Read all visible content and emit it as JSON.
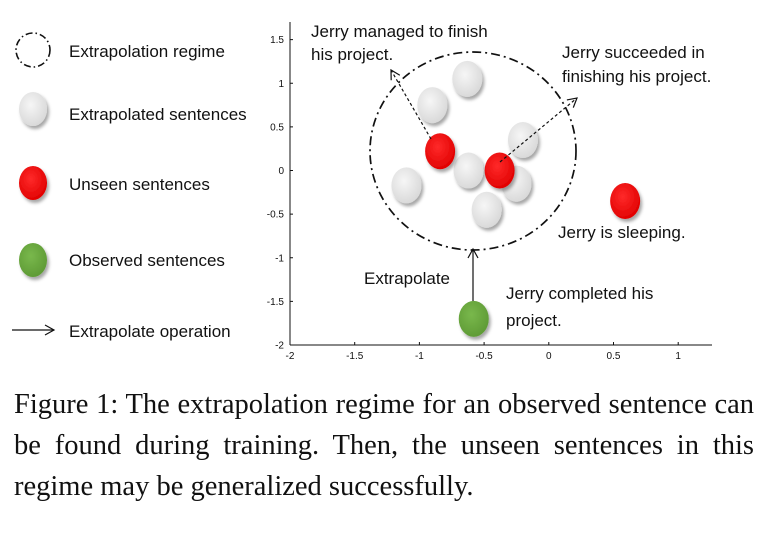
{
  "legend": {
    "regime": "Extrapolation regime",
    "extrapolated": "Extrapolated sentences",
    "unseen": "Unseen sentences",
    "observed": "Observed sentences",
    "operation": "Extrapolate operation"
  },
  "annotations": {
    "managed_l1": "Jerry managed to finish",
    "managed_l2": "his project.",
    "succeeded_l1": "Jerry succeeded in",
    "succeeded_l2": "finishing his project.",
    "sleeping": "Jerry is sleeping.",
    "completed_l1": "Jerry completed his",
    "completed_l2": "project.",
    "extrapolate": "Extrapolate"
  },
  "axes": {
    "x_ticks": [
      "-2",
      "-1.5",
      "-1",
      "-0.5",
      "0",
      "0.5",
      "1"
    ],
    "y_ticks": [
      "1.5",
      "1",
      "0.5",
      "0",
      "-0.5",
      "-1",
      "-1.5",
      "-2"
    ],
    "xlim": [
      -2,
      1.3
    ],
    "ylim": [
      -2,
      1.7
    ]
  },
  "colors": {
    "extrapolated": "#e2e2e2",
    "unseen": "#f20d0d",
    "observed": "#6aaa3f"
  },
  "points": {
    "extrapolated": [
      {
        "x": -0.63,
        "y": 1.05
      },
      {
        "x": -0.9,
        "y": 0.75
      },
      {
        "x": -0.2,
        "y": 0.35
      },
      {
        "x": -0.62,
        "y": 0.0
      },
      {
        "x": -0.25,
        "y": -0.15
      },
      {
        "x": -1.1,
        "y": -0.17
      },
      {
        "x": -0.48,
        "y": -0.45
      }
    ],
    "unseen": [
      {
        "x": -0.84,
        "y": 0.22
      },
      {
        "x": -0.38,
        "y": 0.0
      },
      {
        "x": 0.59,
        "y": -0.35
      }
    ],
    "observed": [
      {
        "x": -0.58,
        "y": -1.7
      }
    ]
  },
  "caption": "Figure 1: The extrapolation regime for an observed sentence can be found during training. Then, the unseen sentences in this regime may be generalized successfully."
}
